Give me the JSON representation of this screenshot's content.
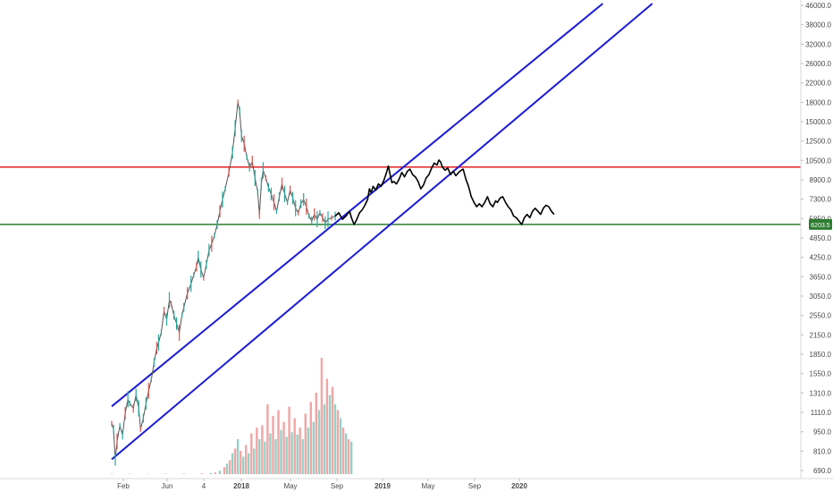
{
  "colors": {
    "background": "#ffffff",
    "channel": "#1a1ad6",
    "resistance": "#e02020",
    "support": "#2e7d32",
    "price_candles": "#555555",
    "projection": "#000000",
    "volume_up": "#7cc4b8",
    "volume_down": "#ef8f8f",
    "price_badge": "#2e7d32"
  },
  "chart_data": {
    "type": "line",
    "y_scale": "log",
    "ylim": [
      650,
      47000
    ],
    "y_ticks": [
      "46000.0",
      "38000.0",
      "32000.0",
      "26000.0",
      "22000.0",
      "18000.0",
      "15000.0",
      "12500.0",
      "10500.0",
      "8900.0",
      "7300.0",
      "5850.0",
      "4850.0",
      "4250.0",
      "3650.0",
      "3050.0",
      "2550.0",
      "2150.0",
      "1850.0",
      "1550.0",
      "1310.0",
      "1110.0",
      "950.0",
      "810.0",
      "690.0"
    ],
    "x_ticks": [
      {
        "label": "Feb",
        "bold": false
      },
      {
        "label": "Jun",
        "bold": false
      },
      {
        "label": "4",
        "bold": false
      },
      {
        "label": "2018",
        "bold": true
      },
      {
        "label": "May",
        "bold": false
      },
      {
        "label": "Sep",
        "bold": false
      },
      {
        "label": "2019",
        "bold": true
      },
      {
        "label": "May",
        "bold": false
      },
      {
        "label": "Sep",
        "bold": false
      },
      {
        "label": "2020",
        "bold": true
      }
    ],
    "current_price": "6203.5",
    "horizontal_levels": [
      {
        "name": "resistance",
        "value": 10500
      },
      {
        "name": "support",
        "value": 6203.5
      }
    ],
    "price_history": [
      [
        0,
        1000
      ],
      [
        2,
        950
      ],
      [
        4,
        720
      ],
      [
        6,
        850
      ],
      [
        9,
        980
      ],
      [
        12,
        900
      ],
      [
        15,
        1100
      ],
      [
        18,
        1250
      ],
      [
        20,
        1200
      ],
      [
        24,
        1150
      ],
      [
        27,
        1300
      ],
      [
        30,
        1150
      ],
      [
        32,
        950
      ],
      [
        35,
        1050
      ],
      [
        38,
        1200
      ],
      [
        41,
        1350
      ],
      [
        44,
        1500
      ],
      [
        47,
        1750
      ],
      [
        50,
        2000
      ],
      [
        52,
        2100
      ],
      [
        55,
        2300
      ],
      [
        58,
        2800
      ],
      [
        61,
        2600
      ],
      [
        64,
        3100
      ],
      [
        66,
        3000
      ],
      [
        69,
        2700
      ],
      [
        72,
        2500
      ],
      [
        75,
        2300
      ],
      [
        78,
        2700
      ],
      [
        80,
        2900
      ],
      [
        84,
        3300
      ],
      [
        88,
        3600
      ],
      [
        91,
        3900
      ],
      [
        94,
        4200
      ],
      [
        96,
        4600
      ],
      [
        99,
        4100
      ],
      [
        102,
        3800
      ],
      [
        105,
        4300
      ],
      [
        108,
        4900
      ],
      [
        111,
        5200
      ],
      [
        114,
        5600
      ],
      [
        117,
        6200
      ],
      [
        120,
        7000
      ],
      [
        123,
        7800
      ],
      [
        126,
        8600
      ],
      [
        130,
        10000
      ],
      [
        134,
        12000
      ],
      [
        137,
        15000
      ],
      [
        140,
        19000
      ],
      [
        142,
        17500
      ],
      [
        144,
        14000
      ],
      [
        147,
        13000
      ],
      [
        150,
        11500
      ],
      [
        153,
        10500
      ],
      [
        156,
        11000
      ],
      [
        159,
        9500
      ],
      [
        162,
        8400
      ],
      [
        164,
        6800
      ],
      [
        166,
        9000
      ],
      [
        168,
        10200
      ],
      [
        171,
        9500
      ],
      [
        174,
        8700
      ],
      [
        177,
        8200
      ],
      [
        180,
        7600
      ],
      [
        183,
        7000
      ],
      [
        186,
        8000
      ],
      [
        189,
        9000
      ],
      [
        192,
        8200
      ],
      [
        195,
        7600
      ],
      [
        198,
        8500
      ],
      [
        201,
        7900
      ],
      [
        204,
        7200
      ],
      [
        207,
        6900
      ],
      [
        210,
        7500
      ],
      [
        213,
        7800
      ],
      [
        216,
        7300
      ],
      [
        219,
        6700
      ],
      [
        222,
        6400
      ],
      [
        225,
        6800
      ],
      [
        228,
        6500
      ],
      [
        231,
        6900
      ],
      [
        234,
        6600
      ],
      [
        237,
        6300
      ],
      [
        240,
        6500
      ],
      [
        244,
        6600
      ],
      [
        248,
        6700
      ]
    ],
    "projection_path": [
      [
        248,
        6700
      ],
      [
        252,
        6900
      ],
      [
        256,
        6500
      ],
      [
        260,
        6700
      ],
      [
        264,
        7000
      ],
      [
        266,
        6600
      ],
      [
        269,
        6200
      ],
      [
        272,
        6500
      ],
      [
        275,
        6900
      ],
      [
        278,
        7100
      ],
      [
        281,
        7400
      ],
      [
        284,
        7800
      ],
      [
        286,
        8600
      ],
      [
        288,
        8300
      ],
      [
        290,
        8800
      ],
      [
        293,
        8500
      ],
      [
        296,
        9000
      ],
      [
        299,
        8800
      ],
      [
        302,
        9300
      ],
      [
        305,
        10000
      ],
      [
        307,
        10600
      ],
      [
        309,
        9800
      ],
      [
        311,
        9100
      ],
      [
        313,
        9200
      ],
      [
        316,
        9000
      ],
      [
        319,
        9400
      ],
      [
        322,
        10000
      ],
      [
        325,
        9600
      ],
      [
        328,
        10100
      ],
      [
        331,
        10300
      ],
      [
        334,
        9800
      ],
      [
        337,
        9600
      ],
      [
        340,
        9200
      ],
      [
        343,
        8600
      ],
      [
        346,
        8900
      ],
      [
        349,
        9500
      ],
      [
        352,
        9800
      ],
      [
        355,
        10400
      ],
      [
        358,
        10900
      ],
      [
        361,
        10700
      ],
      [
        363,
        11200
      ],
      [
        365,
        11000
      ],
      [
        367,
        10500
      ],
      [
        370,
        10200
      ],
      [
        373,
        10400
      ],
      [
        376,
        9800
      ],
      [
        379,
        10100
      ],
      [
        382,
        9700
      ],
      [
        385,
        10000
      ],
      [
        388,
        10200
      ],
      [
        390,
        10300
      ],
      [
        393,
        9400
      ],
      [
        396,
        8800
      ],
      [
        399,
        8000
      ],
      [
        402,
        7600
      ],
      [
        405,
        7300
      ],
      [
        408,
        7500
      ],
      [
        411,
        7300
      ],
      [
        414,
        7600
      ],
      [
        417,
        8000
      ],
      [
        420,
        7500
      ],
      [
        423,
        7300
      ],
      [
        426,
        7700
      ],
      [
        428,
        7600
      ],
      [
        431,
        7900
      ],
      [
        434,
        8000
      ],
      [
        437,
        7600
      ],
      [
        440,
        7300
      ],
      [
        443,
        7100
      ],
      [
        446,
        6700
      ],
      [
        449,
        6600
      ],
      [
        452,
        6400
      ],
      [
        455,
        6200
      ],
      [
        458,
        6600
      ],
      [
        461,
        6800
      ],
      [
        464,
        6600
      ],
      [
        467,
        7000
      ],
      [
        470,
        7200
      ],
      [
        473,
        7000
      ],
      [
        476,
        6800
      ],
      [
        479,
        7200
      ],
      [
        482,
        7400
      ],
      [
        485,
        7300
      ],
      [
        488,
        7000
      ],
      [
        491,
        6800
      ]
    ],
    "channel_lines": [
      {
        "name": "channel-upper",
        "start": [
          0,
          1170
        ],
        "end": [
          545,
          47000
        ]
      },
      {
        "name": "channel-lower",
        "start": [
          0,
          720
        ],
        "end": [
          600,
          47000
        ]
      }
    ],
    "volume": [
      [
        0,
        0.2
      ],
      [
        20,
        0.3
      ],
      [
        40,
        0.25
      ],
      [
        60,
        0.4
      ],
      [
        80,
        0.5
      ],
      [
        100,
        0.6
      ],
      [
        110,
        0.9
      ],
      [
        115,
        1.5
      ],
      [
        120,
        3
      ],
      [
        125,
        6
      ],
      [
        128,
        9
      ],
      [
        131,
        12
      ],
      [
        134,
        18
      ],
      [
        137,
        22
      ],
      [
        140,
        30
      ],
      [
        143,
        20
      ],
      [
        146,
        15
      ],
      [
        149,
        25
      ],
      [
        152,
        18
      ],
      [
        155,
        35
      ],
      [
        158,
        22
      ],
      [
        161,
        40
      ],
      [
        164,
        30
      ],
      [
        167,
        42
      ],
      [
        170,
        28
      ],
      [
        173,
        60
      ],
      [
        176,
        35
      ],
      [
        179,
        50
      ],
      [
        182,
        30
      ],
      [
        185,
        55
      ],
      [
        188,
        38
      ],
      [
        191,
        45
      ],
      [
        194,
        32
      ],
      [
        197,
        58
      ],
      [
        200,
        36
      ],
      [
        203,
        48
      ],
      [
        206,
        34
      ],
      [
        209,
        40
      ],
      [
        212,
        30
      ],
      [
        215,
        52
      ],
      [
        218,
        40
      ],
      [
        221,
        62
      ],
      [
        224,
        45
      ],
      [
        227,
        70
      ],
      [
        230,
        55
      ],
      [
        233,
        100
      ],
      [
        236,
        60
      ],
      [
        239,
        82
      ],
      [
        242,
        68
      ],
      [
        245,
        75
      ],
      [
        248,
        60
      ],
      [
        251,
        55
      ],
      [
        254,
        48
      ],
      [
        257,
        40
      ],
      [
        260,
        35
      ],
      [
        263,
        30
      ],
      [
        266,
        28
      ]
    ]
  }
}
